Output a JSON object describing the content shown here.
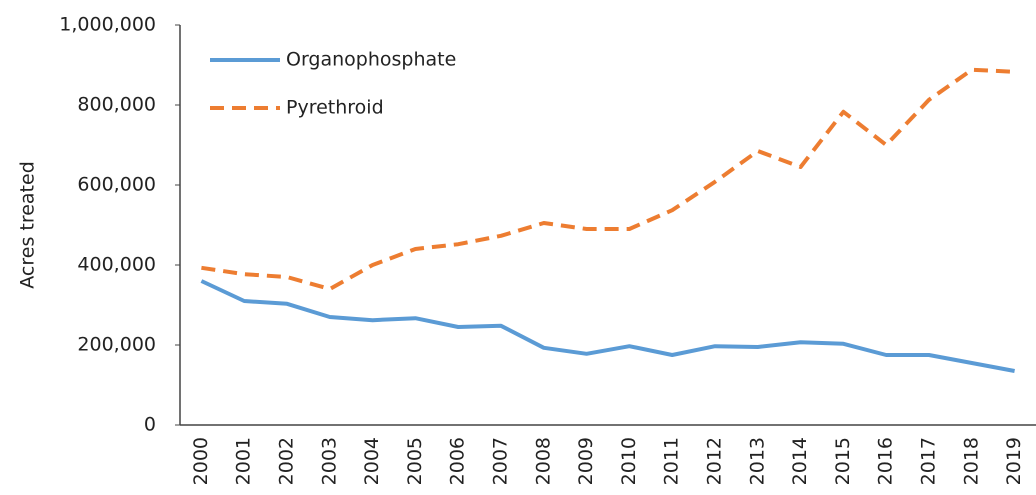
{
  "chart_data": {
    "type": "line",
    "y_label": "Acres treated",
    "categories": [
      "2000",
      "2001",
      "2002",
      "2003",
      "2004",
      "2005",
      "2006",
      "2007",
      "2008",
      "2009",
      "2010",
      "2011",
      "2012",
      "2013",
      "2014",
      "2015",
      "2016",
      "2017",
      "2018",
      "2019"
    ],
    "series": [
      {
        "name": "Organophosphate",
        "color": "#5b9bd5",
        "dash": "solid",
        "values": [
          360000,
          310000,
          303000,
          270000,
          262000,
          267000,
          245000,
          248000,
          193000,
          178000,
          197000,
          175000,
          197000,
          195000,
          207000,
          203000,
          175000,
          175000,
          155000,
          135000
        ]
      },
      {
        "name": "Pyrethroid",
        "color": "#ed7d31",
        "dash": "dashed",
        "values": [
          393000,
          377000,
          370000,
          340000,
          400000,
          440000,
          452000,
          473000,
          505000,
          490000,
          490000,
          537000,
          608000,
          685000,
          645000,
          783000,
          700000,
          813000,
          888000,
          883000
        ]
      }
    ],
    "ylim": [
      0,
      1000000
    ],
    "yticks": [
      0,
      {
        "value": 200000,
        "label": "200,000"
      },
      {
        "value": 400000,
        "label": "400,000"
      },
      {
        "value": 600000,
        "label": "600,000"
      },
      {
        "value": 800000,
        "label": "800,000"
      },
      {
        "value": 1000000,
        "label": "1,000,000"
      }
    ],
    "grid": false,
    "legend": "top-left"
  }
}
